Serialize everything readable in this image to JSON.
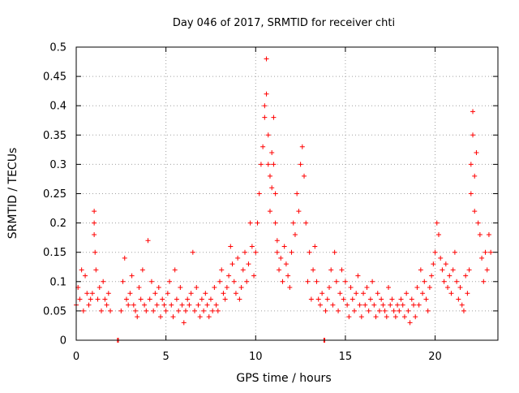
{
  "chart_data": {
    "type": "scatter",
    "title": "Day 046 of 2017, SRMTID for receiver chti",
    "xlabel": "GPS time / hours",
    "ylabel": "SRMTID / TECUs",
    "xlim": [
      0,
      23.5
    ],
    "ylim": [
      0,
      0.5
    ],
    "x_ticks": [
      0,
      5,
      10,
      15,
      20
    ],
    "x_tick_labels": [
      "0",
      "5",
      "10",
      "15",
      "20"
    ],
    "y_ticks": [
      0,
      0.05,
      0.1,
      0.15,
      0.2,
      0.25,
      0.3,
      0.35,
      0.4,
      0.45,
      0.5
    ],
    "y_tick_labels": [
      "0",
      "0.05",
      "0.1",
      "0.15",
      "0.2",
      "0.25",
      "0.3",
      "0.35",
      "0.4",
      "0.45",
      "0.5"
    ],
    "grid": true,
    "marker": "+",
    "series": [
      {
        "name": "SRMTID",
        "color": "#ff0000",
        "x": [
          0.0,
          0.1,
          0.2,
          0.3,
          0.4,
          0.5,
          0.6,
          0.7,
          0.8,
          0.9,
          1.0,
          1.0,
          1.0,
          1.05,
          1.1,
          1.2,
          1.3,
          1.4,
          1.5,
          1.6,
          1.7,
          1.8,
          1.9,
          2.3,
          2.35,
          2.5,
          2.6,
          2.7,
          2.8,
          2.9,
          3.0,
          3.1,
          3.2,
          3.3,
          3.4,
          3.5,
          3.6,
          3.7,
          3.8,
          3.9,
          4.0,
          4.1,
          4.2,
          4.3,
          4.4,
          4.5,
          4.6,
          4.7,
          4.8,
          4.9,
          5.0,
          5.1,
          5.2,
          5.3,
          5.4,
          5.5,
          5.6,
          5.7,
          5.8,
          5.9,
          6.0,
          6.1,
          6.2,
          6.3,
          6.4,
          6.5,
          6.6,
          6.7,
          6.8,
          6.9,
          7.0,
          7.1,
          7.2,
          7.3,
          7.4,
          7.5,
          7.6,
          7.7,
          7.8,
          7.9,
          8.0,
          8.1,
          8.2,
          8.3,
          8.4,
          8.5,
          8.6,
          8.7,
          8.8,
          8.9,
          9.0,
          9.1,
          9.2,
          9.3,
          9.4,
          9.5,
          9.6,
          9.7,
          9.8,
          9.9,
          10.0,
          10.1,
          10.2,
          10.3,
          10.4,
          10.5,
          10.5,
          10.6,
          10.6,
          10.7,
          10.7,
          10.8,
          10.8,
          10.9,
          10.9,
          11.0,
          11.0,
          11.1,
          11.1,
          11.2,
          11.2,
          11.3,
          11.4,
          11.5,
          11.6,
          11.7,
          11.8,
          11.9,
          12.0,
          12.1,
          12.2,
          12.3,
          12.4,
          12.5,
          12.6,
          12.7,
          12.8,
          12.9,
          13.0,
          13.1,
          13.2,
          13.3,
          13.4,
          13.5,
          13.6,
          13.7,
          13.8,
          13.85,
          13.9,
          14.0,
          14.1,
          14.2,
          14.3,
          14.4,
          14.5,
          14.6,
          14.7,
          14.8,
          14.9,
          15.0,
          15.1,
          15.2,
          15.3,
          15.4,
          15.5,
          15.6,
          15.7,
          15.8,
          15.9,
          16.0,
          16.1,
          16.2,
          16.3,
          16.4,
          16.5,
          16.6,
          16.7,
          16.8,
          16.9,
          17.0,
          17.1,
          17.2,
          17.3,
          17.4,
          17.5,
          17.6,
          17.7,
          17.8,
          17.9,
          18.0,
          18.1,
          18.2,
          18.3,
          18.4,
          18.5,
          18.6,
          18.7,
          18.8,
          18.9,
          19.0,
          19.1,
          19.2,
          19.3,
          19.4,
          19.5,
          19.6,
          19.7,
          19.8,
          19.9,
          20.0,
          20.1,
          20.2,
          20.3,
          20.4,
          20.5,
          20.6,
          20.7,
          20.8,
          20.9,
          21.0,
          21.1,
          21.2,
          21.3,
          21.4,
          21.5,
          21.6,
          21.7,
          21.8,
          21.9,
          22.0,
          22.0,
          22.1,
          22.1,
          22.2,
          22.2,
          22.3,
          22.4,
          22.5,
          22.6,
          22.7,
          22.8,
          22.9,
          23.0,
          23.1
        ],
        "y": [
          0.06,
          0.09,
          0.07,
          0.12,
          0.05,
          0.11,
          0.08,
          0.06,
          0.07,
          0.08,
          0.2,
          0.22,
          0.18,
          0.15,
          0.12,
          0.07,
          0.09,
          0.05,
          0.1,
          0.07,
          0.06,
          0.08,
          0.05,
          0.0,
          0.0,
          0.05,
          0.1,
          0.14,
          0.07,
          0.06,
          0.08,
          0.11,
          0.06,
          0.05,
          0.04,
          0.09,
          0.07,
          0.12,
          0.06,
          0.05,
          0.17,
          0.07,
          0.1,
          0.05,
          0.08,
          0.06,
          0.09,
          0.04,
          0.07,
          0.06,
          0.05,
          0.08,
          0.1,
          0.06,
          0.04,
          0.12,
          0.07,
          0.05,
          0.09,
          0.06,
          0.03,
          0.05,
          0.07,
          0.06,
          0.08,
          0.15,
          0.05,
          0.09,
          0.06,
          0.04,
          0.07,
          0.05,
          0.08,
          0.06,
          0.04,
          0.07,
          0.05,
          0.09,
          0.06,
          0.05,
          0.1,
          0.12,
          0.08,
          0.07,
          0.09,
          0.11,
          0.16,
          0.13,
          0.1,
          0.08,
          0.14,
          0.07,
          0.09,
          0.12,
          0.15,
          0.1,
          0.13,
          0.2,
          0.16,
          0.11,
          0.15,
          0.2,
          0.25,
          0.3,
          0.33,
          0.4,
          0.38,
          0.48,
          0.42,
          0.35,
          0.3,
          0.28,
          0.22,
          0.32,
          0.26,
          0.38,
          0.3,
          0.25,
          0.2,
          0.17,
          0.15,
          0.12,
          0.14,
          0.1,
          0.16,
          0.13,
          0.11,
          0.09,
          0.15,
          0.2,
          0.18,
          0.25,
          0.22,
          0.3,
          0.33,
          0.28,
          0.2,
          0.1,
          0.15,
          0.07,
          0.12,
          0.16,
          0.1,
          0.07,
          0.06,
          0.08,
          0.0,
          0.0,
          0.05,
          0.07,
          0.09,
          0.12,
          0.06,
          0.15,
          0.1,
          0.05,
          0.08,
          0.12,
          0.07,
          0.1,
          0.06,
          0.04,
          0.09,
          0.07,
          0.05,
          0.08,
          0.11,
          0.06,
          0.04,
          0.08,
          0.06,
          0.09,
          0.05,
          0.07,
          0.1,
          0.06,
          0.04,
          0.08,
          0.05,
          0.07,
          0.06,
          0.05,
          0.04,
          0.09,
          0.06,
          0.07,
          0.05,
          0.04,
          0.06,
          0.05,
          0.07,
          0.06,
          0.04,
          0.08,
          0.05,
          0.03,
          0.07,
          0.06,
          0.04,
          0.09,
          0.06,
          0.12,
          0.08,
          0.1,
          0.07,
          0.05,
          0.09,
          0.11,
          0.13,
          0.15,
          0.2,
          0.18,
          0.14,
          0.12,
          0.1,
          0.13,
          0.09,
          0.11,
          0.08,
          0.12,
          0.15,
          0.1,
          0.07,
          0.09,
          0.06,
          0.05,
          0.11,
          0.08,
          0.12,
          0.25,
          0.3,
          0.35,
          0.39,
          0.28,
          0.22,
          0.32,
          0.2,
          0.18,
          0.14,
          0.1,
          0.15,
          0.12,
          0.18,
          0.15
        ]
      }
    ]
  }
}
